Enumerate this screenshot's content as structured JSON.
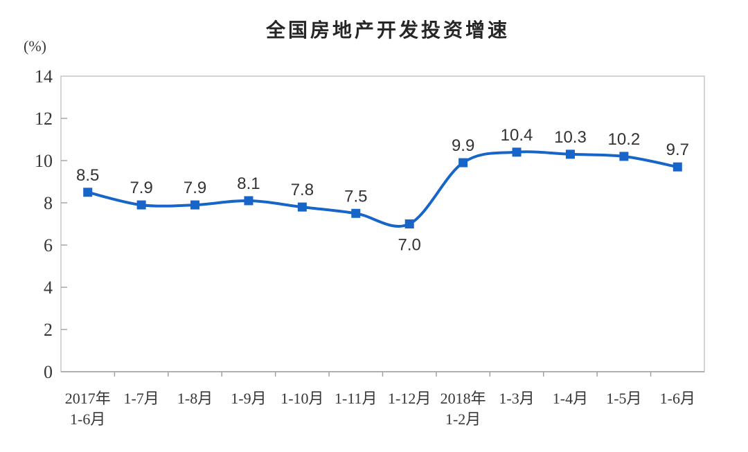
{
  "chart_data": {
    "type": "line",
    "title": "全国房地产开发投资增速",
    "ylabel": "(%)",
    "xlabel": "",
    "categories": [
      [
        "2017年",
        "1-6月"
      ],
      [
        "1-7月"
      ],
      [
        "1-8月"
      ],
      [
        "1-9月"
      ],
      [
        "1-10月"
      ],
      [
        "1-11月"
      ],
      [
        "1-12月"
      ],
      [
        "2018年",
        "1-2月"
      ],
      [
        "1-3月"
      ],
      [
        "1-4月"
      ],
      [
        "1-5月"
      ],
      [
        "1-6月"
      ]
    ],
    "values": [
      8.5,
      7.9,
      7.9,
      8.1,
      7.8,
      7.5,
      7.0,
      9.9,
      10.4,
      10.3,
      10.2,
      9.7
    ],
    "data_labels": [
      "8.5",
      "7.9",
      "7.9",
      "8.1",
      "7.8",
      "7.5",
      "7.0",
      "9.9",
      "10.4",
      "10.3",
      "10.2",
      "9.7"
    ],
    "label_below_indexes": [
      6
    ],
    "ylim": [
      0,
      14
    ],
    "yticks": [
      0,
      2,
      4,
      6,
      8,
      10,
      12,
      14
    ],
    "grid": false,
    "legend_position": "none",
    "marker": "square",
    "line_smooth": true,
    "colors": {
      "line": "#1765c8",
      "marker": "#1765c8",
      "plot_border": "#c6c6c6",
      "bottom_axis": "#a0a0a0",
      "tick": "#a6a6a6",
      "axis_text": "#363636",
      "label_text": "#333333",
      "title_text": "#262626",
      "background": "#ffffff"
    }
  }
}
